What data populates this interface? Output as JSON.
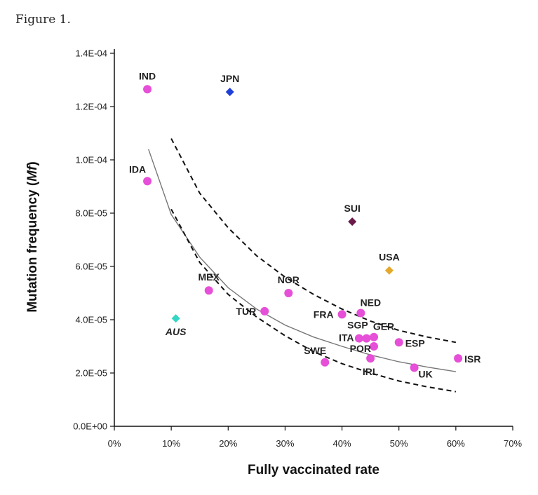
{
  "figure_label": "Figure 1.",
  "colors": {
    "point": "#e64fd7",
    "JPN": "#1f3fd6",
    "SUI": "#6b1a4a",
    "USA": "#e4a92a",
    "AUS": "#33d6c4",
    "fit": "#777777",
    "ci": "#111111"
  },
  "chart_data": {
    "type": "scatter",
    "xlabel": "Fully vaccinated rate",
    "ylabel_main": "Mutation frequency (",
    "ylabel_em": "Mf",
    "ylabel_end": ")",
    "xlim": [
      0,
      0.7
    ],
    "ylim": [
      0,
      0.00014
    ],
    "x_ticks": [
      0,
      0.1,
      0.2,
      0.3,
      0.4,
      0.5,
      0.6,
      0.7
    ],
    "x_tick_labels": [
      "0%",
      "10%",
      "20%",
      "30%",
      "40%",
      "50%",
      "60%",
      "70%"
    ],
    "y_ticks": [
      0,
      2e-05,
      4e-05,
      6e-05,
      8e-05,
      0.0001,
      0.00012,
      0.00014
    ],
    "y_tick_labels": [
      "0.0E+00",
      "2.0E-05",
      "4.0E-05",
      "6.0E-05",
      "8.0E-05",
      "1.0E-04",
      "1.2E-04",
      "1.4E-04"
    ],
    "points": [
      {
        "label": "IND",
        "x": 0.058,
        "y": 0.0001265,
        "shape": "circle",
        "color_key": "point",
        "label_pos": "top"
      },
      {
        "label": "IDA",
        "x": 0.058,
        "y": 9.2e-05,
        "shape": "circle",
        "color_key": "point",
        "label_pos": "top-left"
      },
      {
        "label": "JPN",
        "x": 0.203,
        "y": 0.0001255,
        "shape": "diamond",
        "color_key": "JPN",
        "label_pos": "top"
      },
      {
        "label": "SUI",
        "x": 0.418,
        "y": 7.68e-05,
        "shape": "diamond",
        "color_key": "SUI",
        "label_pos": "top"
      },
      {
        "label": "USA",
        "x": 0.483,
        "y": 5.85e-05,
        "shape": "diamond",
        "color_key": "USA",
        "label_pos": "top"
      },
      {
        "label": "AUS",
        "x": 0.108,
        "y": 4.05e-05,
        "shape": "diamond",
        "color_key": "AUS",
        "label_pos": "bottom",
        "italic": true
      },
      {
        "label": "MEX",
        "x": 0.166,
        "y": 5.1e-05,
        "shape": "circle",
        "color_key": "point",
        "label_pos": "top"
      },
      {
        "label": "NOR",
        "x": 0.306,
        "y": 5e-05,
        "shape": "circle",
        "color_key": "point",
        "label_pos": "top"
      },
      {
        "label": "TUR",
        "x": 0.264,
        "y": 4.32e-05,
        "shape": "circle",
        "color_key": "point",
        "label_pos": "left"
      },
      {
        "label": "FRA",
        "x": 0.4,
        "y": 4.2e-05,
        "shape": "circle",
        "color_key": "point",
        "label_pos": "left"
      },
      {
        "label": "NED",
        "x": 0.433,
        "y": 4.25e-05,
        "shape": "circle",
        "color_key": "point",
        "label_pos": "top-right"
      },
      {
        "label": "SGP",
        "x": 0.43,
        "y": 3.3e-05,
        "shape": "circle",
        "color_key": "point",
        "label_pos": "top-left-near"
      },
      {
        "label": "ITA",
        "x": 0.443,
        "y": 3.3e-05,
        "shape": "circle",
        "color_key": "point",
        "label_pos": "left-far"
      },
      {
        "label": "GER",
        "x": 0.456,
        "y": 3.35e-05,
        "shape": "circle",
        "color_key": "point",
        "label_pos": "top-right"
      },
      {
        "label": "POR",
        "x": 0.456,
        "y": 3e-05,
        "shape": "circle",
        "color_key": "point",
        "label_pos": "left-near"
      },
      {
        "label": "ESP",
        "x": 0.5,
        "y": 3.15e-05,
        "shape": "circle",
        "color_key": "point",
        "label_pos": "right"
      },
      {
        "label": "SWE",
        "x": 0.37,
        "y": 2.4e-05,
        "shape": "circle",
        "color_key": "point",
        "label_pos": "top-left"
      },
      {
        "label": "IRL",
        "x": 0.45,
        "y": 2.55e-05,
        "shape": "circle",
        "color_key": "point",
        "label_pos": "bottom"
      },
      {
        "label": "UK",
        "x": 0.527,
        "y": 2.2e-05,
        "shape": "circle",
        "color_key": "point",
        "label_pos": "bottom-right"
      },
      {
        "label": "ISR",
        "x": 0.604,
        "y": 2.55e-05,
        "shape": "circle",
        "color_key": "point",
        "label_pos": "right"
      }
    ],
    "fit_curve": {
      "x": [
        0.06,
        0.1,
        0.15,
        0.2,
        0.25,
        0.3,
        0.35,
        0.4,
        0.45,
        0.5,
        0.55,
        0.6
      ],
      "y": [
        0.000104,
        7.95e-05,
        6.35e-05,
        5.2e-05,
        4.4e-05,
        3.8e-05,
        3.35e-05,
        3e-05,
        2.68e-05,
        2.42e-05,
        2.22e-05,
        2.05e-05
      ]
    },
    "ci_upper": {
      "x": [
        0.1,
        0.15,
        0.2,
        0.25,
        0.3,
        0.35,
        0.4,
        0.45,
        0.5,
        0.55,
        0.6
      ],
      "y": [
        0.000108,
        8.75e-05,
        7.45e-05,
        6.4e-05,
        5.6e-05,
        4.95e-05,
        4.4e-05,
        3.95e-05,
        3.6e-05,
        3.35e-05,
        3.15e-05
      ]
    },
    "ci_lower": {
      "x": [
        0.1,
        0.15,
        0.2,
        0.25,
        0.3,
        0.35,
        0.4,
        0.45,
        0.5,
        0.55,
        0.6
      ],
      "y": [
        8.15e-05,
        6.15e-05,
        4.95e-05,
        4.1e-05,
        3.4e-05,
        2.8e-05,
        2.35e-05,
        2e-05,
        1.7e-05,
        1.48e-05,
        1.3e-05
      ]
    }
  }
}
